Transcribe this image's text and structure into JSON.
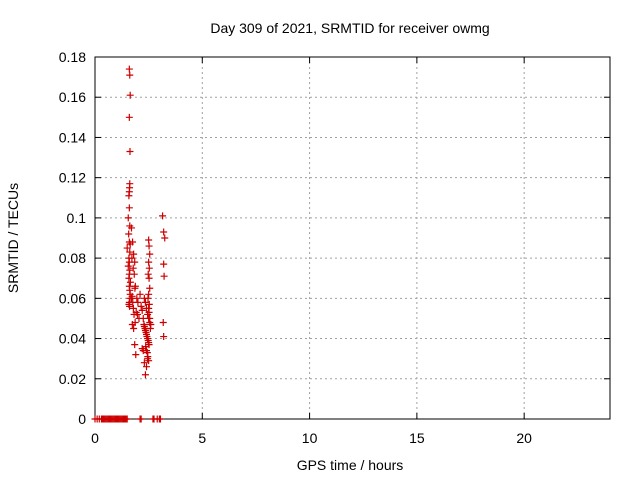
{
  "chart_data": {
    "type": "scatter",
    "title": "Day 309 of 2021, SRMTID for receiver owmg",
    "xlabel": "GPS time / hours",
    "ylabel": "SRMTID / TECUs",
    "xlim": [
      0,
      24
    ],
    "ylim": [
      0,
      0.18
    ],
    "xticks": [
      0,
      5,
      10,
      15,
      20
    ],
    "xtick_labels": [
      "0",
      "5",
      "10",
      "15",
      "20"
    ],
    "yticks": [
      0,
      0.02,
      0.04,
      0.06,
      0.08,
      0.1,
      0.12,
      0.14,
      0.16,
      0.18
    ],
    "ytick_labels": [
      "0",
      "0.02",
      "0.04",
      "0.06",
      "0.08",
      "0.1",
      "0.12",
      "0.14",
      "0.16",
      "0.18"
    ],
    "grid": true,
    "legend": "none",
    "marker": "plus",
    "color": "#cc0000",
    "series": [
      {
        "x": [
          0.0,
          0.1,
          0.2,
          0.3,
          0.35,
          0.4,
          0.45,
          0.5,
          0.55,
          0.6,
          0.65,
          0.7,
          0.75,
          0.8,
          0.85,
          0.9,
          0.95,
          1.0,
          1.05,
          1.1,
          1.15,
          1.2,
          1.25,
          1.3,
          1.35,
          1.4,
          1.45,
          1.5,
          2.1,
          2.15,
          2.7,
          2.75,
          2.9,
          3.0,
          3.05,
          1.6,
          1.62,
          1.64,
          1.6,
          1.63,
          1.62,
          1.61,
          1.6,
          1.58,
          1.6,
          1.55,
          1.62,
          1.57,
          1.6,
          1.64,
          1.5,
          1.62,
          1.58,
          1.6,
          1.55,
          1.62,
          1.6,
          1.58,
          1.65,
          1.6,
          1.62,
          1.64,
          1.63,
          1.6,
          1.58,
          1.61,
          1.7,
          1.75,
          1.8,
          1.85,
          1.72,
          1.78,
          1.83,
          1.88,
          1.7,
          1.76,
          1.82,
          1.87,
          1.74,
          1.8,
          1.85,
          1.9,
          1.73,
          1.79,
          1.86,
          1.92,
          1.95,
          1.98,
          2.0,
          2.05,
          2.1,
          2.15,
          2.2,
          2.25,
          2.3,
          2.35,
          2.4,
          2.45,
          2.5,
          2.2,
          2.25,
          2.3,
          2.35,
          2.4,
          2.45,
          2.3,
          2.35,
          2.4,
          2.45,
          2.5,
          2.55,
          2.28,
          2.33,
          2.38,
          2.42,
          2.48,
          2.52,
          2.36,
          2.4,
          2.44,
          2.46,
          2.5,
          2.5,
          2.52,
          2.55,
          2.5,
          2.53,
          2.48,
          2.52,
          2.55,
          2.5,
          2.47,
          2.53,
          2.5,
          2.52,
          2.55,
          2.6,
          2.58,
          3.15,
          3.2,
          3.25,
          3.2,
          3.22,
          3.18,
          3.2
        ],
        "y": [
          0,
          0,
          0,
          0,
          0,
          0,
          0,
          0,
          0,
          0,
          0,
          0,
          0,
          0,
          0,
          0,
          0,
          0,
          0,
          0,
          0,
          0,
          0,
          0,
          0,
          0,
          0,
          0,
          0,
          0,
          0,
          0,
          0,
          0,
          0,
          0.174,
          0.171,
          0.161,
          0.15,
          0.133,
          0.117,
          0.115,
          0.113,
          0.111,
          0.105,
          0.1,
          0.096,
          0.092,
          0.088,
          0.087,
          0.085,
          0.083,
          0.08,
          0.078,
          0.076,
          0.074,
          0.072,
          0.07,
          0.068,
          0.066,
          0.064,
          0.062,
          0.06,
          0.058,
          0.057,
          0.056,
          0.095,
          0.088,
          0.082,
          0.078,
          0.08,
          0.075,
          0.072,
          0.066,
          0.06,
          0.058,
          0.052,
          0.048,
          0.047,
          0.045,
          0.037,
          0.032,
          0.061,
          0.055,
          0.065,
          0.053,
          0.06,
          0.052,
          0.058,
          0.05,
          0.062,
          0.056,
          0.054,
          0.05,
          0.046,
          0.044,
          0.042,
          0.04,
          0.038,
          0.035,
          0.034,
          0.028,
          0.022,
          0.026,
          0.03,
          0.06,
          0.058,
          0.055,
          0.052,
          0.05,
          0.048,
          0.047,
          0.045,
          0.043,
          0.041,
          0.039,
          0.037,
          0.036,
          0.034,
          0.033,
          0.031,
          0.029,
          0.089,
          0.086,
          0.082,
          0.078,
          0.075,
          0.072,
          0.07,
          0.065,
          0.062,
          0.06,
          0.057,
          0.055,
          0.053,
          0.05,
          0.047,
          0.045,
          0.101,
          0.093,
          0.09,
          0.077,
          0.071,
          0.048,
          0.041
        ]
      }
    ]
  }
}
